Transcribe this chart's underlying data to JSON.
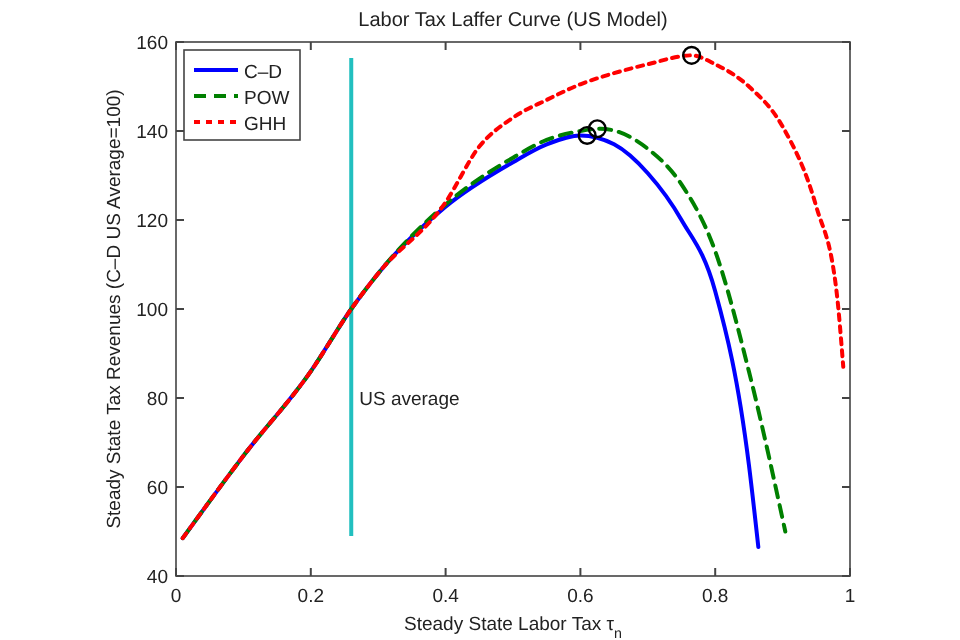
{
  "chart_data": {
    "type": "line",
    "title": "Labor Tax Laffer Curve (US Model)",
    "xlabel": "Steady State Labor Tax τ$_{n}$",
    "ylabel": "Steady State Tax Revenues (C–D US Average=100)",
    "xlim": [
      0,
      1
    ],
    "ylim": [
      40,
      160
    ],
    "xticks": [
      0,
      0.2,
      0.4,
      0.6,
      0.8,
      1
    ],
    "yticks": [
      40,
      60,
      80,
      100,
      120,
      140,
      160
    ],
    "grid": false,
    "legend": "top left",
    "marker": "none",
    "series": [
      {
        "name": "C–D",
        "color": "#0000ff",
        "line_style": "solid",
        "x": [
          0.01,
          0.1,
          0.2,
          0.26,
          0.3,
          0.4,
          0.5,
          0.55,
          0.6,
          0.65,
          0.7,
          0.75,
          0.8,
          0.85,
          0.864
        ],
        "values": [
          48.5,
          67,
          86,
          100,
          108,
          123,
          133,
          137,
          139,
          137,
          130.5,
          120,
          104,
          65,
          46.5
        ]
      },
      {
        "name": "POW",
        "color": "#008000",
        "line_style": "dashed",
        "x": [
          0.01,
          0.1,
          0.2,
          0.26,
          0.3,
          0.4,
          0.5,
          0.55,
          0.6,
          0.63,
          0.7,
          0.75,
          0.8,
          0.85,
          0.904
        ],
        "values": [
          48.5,
          67,
          86,
          100,
          108,
          123.5,
          134,
          138,
          140,
          140.5,
          136,
          128,
          113,
          86,
          50
        ]
      },
      {
        "name": "GHH",
        "color": "#ff0000",
        "line_style": "dotted",
        "x": [
          0.01,
          0.1,
          0.2,
          0.26,
          0.3,
          0.4,
          0.45,
          0.5,
          0.55,
          0.6,
          0.65,
          0.7,
          0.765,
          0.8,
          0.85,
          0.9,
          0.95,
          0.98,
          0.99
        ],
        "values": [
          48.5,
          67,
          86,
          100,
          108,
          124,
          136.5,
          143,
          147,
          150.5,
          153,
          155,
          157,
          155,
          150,
          141,
          123,
          104,
          87
        ]
      },
      {
        "type": "scatter",
        "color": "#000000",
        "marker": "circle",
        "x": [
          0.61,
          0.625,
          0.765
        ],
        "values": [
          139,
          140.5,
          157
        ]
      }
    ],
    "ref_lines": [
      {
        "axis": "x",
        "value": 0.26,
        "label": "US average",
        "color": "#22bfbf",
        "line_style": "solid"
      }
    ]
  }
}
